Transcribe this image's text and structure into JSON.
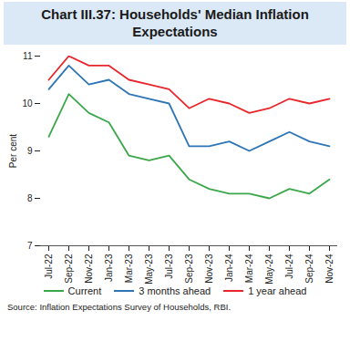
{
  "chart_data": {
    "type": "line",
    "title": "Chart III.37: Households' Median Inflation Expectations",
    "y_label": "Per cent",
    "source": "Source: Inflation Expectations Survey of Households, RBI.",
    "categories": [
      "Jul-22",
      "Sep-22",
      "Nov-22",
      "Jan-23",
      "Mar-23",
      "May-23",
      "Jul-23",
      "Sep-23",
      "Nov-23",
      "Jan-24",
      "Mar-24",
      "May-24",
      "Jul-24",
      "Sep-24",
      "Nov-24"
    ],
    "series": [
      {
        "name": "Current",
        "color": "#3aa84a",
        "values": [
          9.3,
          10.2,
          9.8,
          9.6,
          8.9,
          8.8,
          8.9,
          8.4,
          8.2,
          8.1,
          8.1,
          8.0,
          8.2,
          8.1,
          8.4
        ]
      },
      {
        "name": "3 months ahead",
        "color": "#2e75b6",
        "values": [
          10.3,
          10.8,
          10.4,
          10.5,
          10.2,
          10.1,
          10.0,
          9.1,
          9.1,
          9.2,
          9.0,
          9.2,
          9.4,
          9.2,
          9.1
        ]
      },
      {
        "name": "1 year ahead",
        "color": "#e8262b",
        "values": [
          10.5,
          11.0,
          10.8,
          10.8,
          10.5,
          10.4,
          10.3,
          9.9,
          10.1,
          10.0,
          9.8,
          9.9,
          10.1,
          10.0,
          10.1
        ]
      }
    ],
    "ylim": [
      7,
      11
    ],
    "yticks": [
      7,
      8,
      9,
      10,
      11
    ],
    "grid": false,
    "legend": "bottom"
  }
}
